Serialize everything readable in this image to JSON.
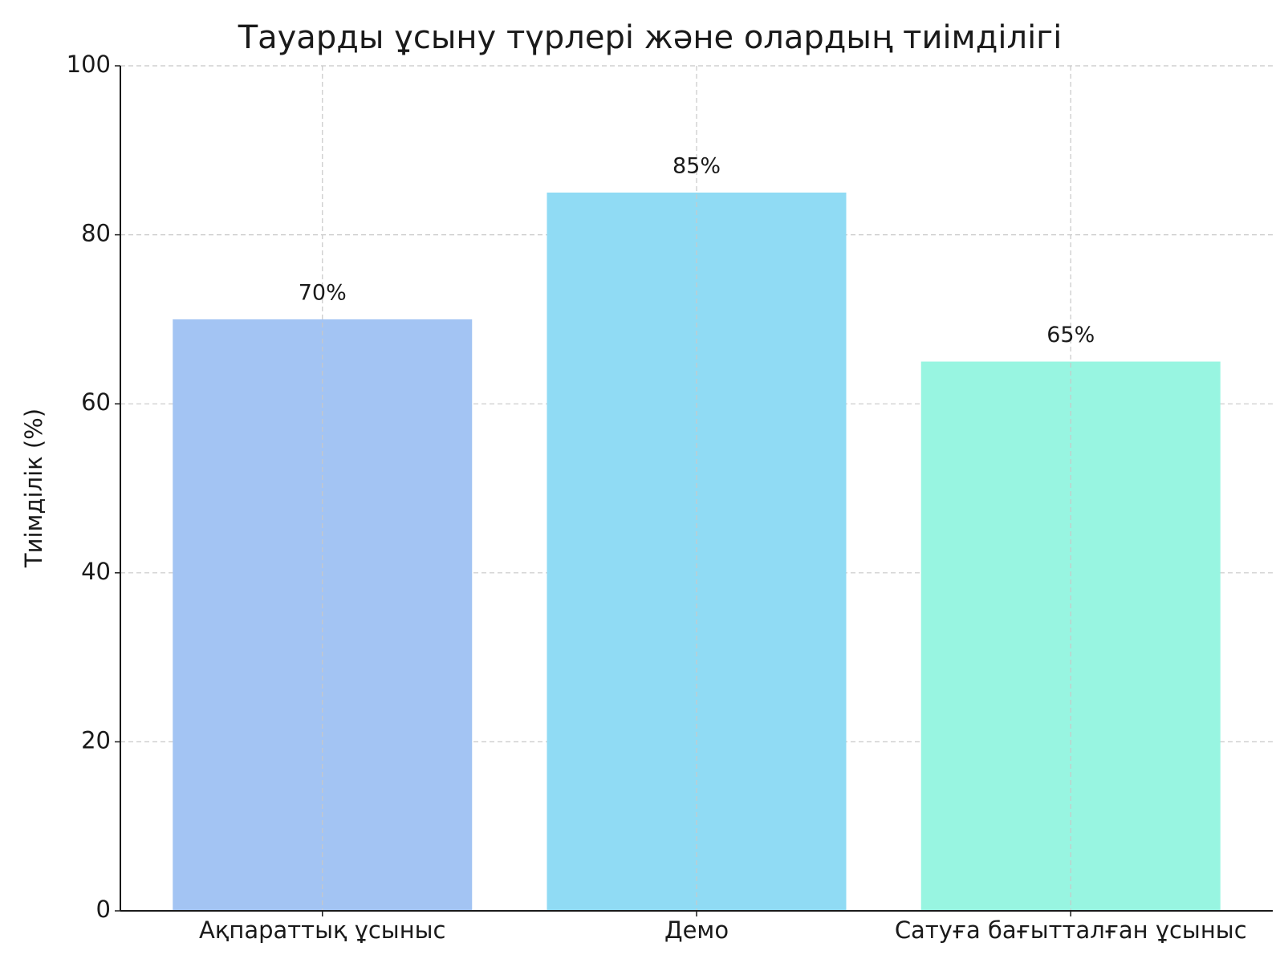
{
  "chart_data": {
    "type": "bar",
    "title": "Тауарды ұсыну түрлері және олардың тиімділігі",
    "y_label": "Тиімділік (%)",
    "categories": [
      "Ақпараттық ұсыныс",
      "Демо",
      "Сатуға бағытталған ұсыныс"
    ],
    "values": [
      70,
      85,
      65
    ],
    "value_labels": [
      "70%",
      "85%",
      "65%"
    ],
    "colors": [
      "#a3c4f3",
      "#90dbf4",
      "#98f5e1"
    ],
    "ylim": [
      0,
      100
    ],
    "yticks": [
      0,
      20,
      40,
      60,
      80,
      100
    ],
    "grid": true
  }
}
